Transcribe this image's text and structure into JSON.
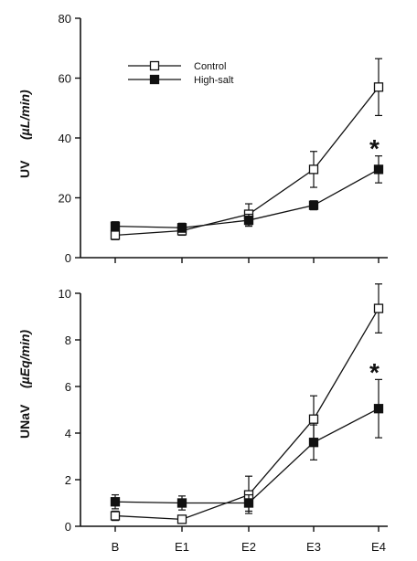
{
  "chart_data": [
    {
      "type": "line",
      "categories": [
        "B",
        "E1",
        "E2",
        "E3",
        "E4"
      ],
      "ylim": [
        0,
        80
      ],
      "yticks": [
        0,
        20,
        40,
        60,
        80
      ],
      "ylabel": {
        "main": "UV",
        "unit": "(µL/min)"
      },
      "legend": {
        "placement": "top-left"
      },
      "series": [
        {
          "name": "Control",
          "marker": "open-square",
          "values": [
            7.5,
            9,
            14.5,
            29.5,
            57
          ],
          "errors": [
            1.5,
            1.5,
            3.5,
            6,
            9.5
          ]
        },
        {
          "name": "High-salt",
          "marker": "filled-square",
          "values": [
            10.5,
            10,
            12.5,
            17.5,
            29.5
          ],
          "errors": [
            1.5,
            1.5,
            2,
            1.5,
            4.5
          ]
        }
      ],
      "annotations": [
        {
          "text": "*",
          "category": "E4",
          "value": 40
        }
      ]
    },
    {
      "type": "line",
      "categories": [
        "B",
        "E1",
        "E2",
        "E3",
        "E4"
      ],
      "ylim": [
        0,
        10
      ],
      "yticks": [
        0,
        2,
        4,
        6,
        8,
        10
      ],
      "ylabel": {
        "main": "UNaV",
        "unit": "(µEq/min)"
      },
      "series": [
        {
          "name": "Control",
          "marker": "open-square",
          "values": [
            0.45,
            0.3,
            1.35,
            4.6,
            9.35
          ],
          "errors": [
            0.2,
            0.15,
            0.8,
            1.0,
            1.05
          ]
        },
        {
          "name": "High-salt",
          "marker": "filled-square",
          "values": [
            1.05,
            1.0,
            1.0,
            3.6,
            5.05
          ],
          "errors": [
            0.3,
            0.3,
            0.35,
            0.75,
            1.25
          ]
        }
      ],
      "annotations": [
        {
          "text": "*",
          "category": "E4",
          "value": 7.3
        }
      ]
    }
  ]
}
